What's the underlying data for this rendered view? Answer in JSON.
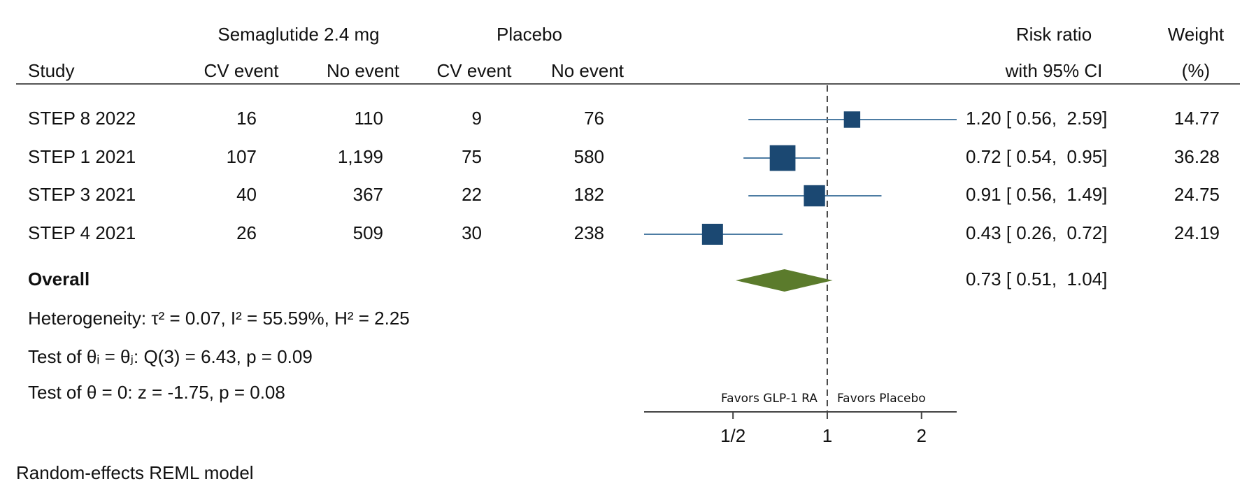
{
  "chart_data": {
    "type": "forest",
    "column_groups": [
      "Semaglutide 2.4 mg",
      "Placebo"
    ],
    "columns": [
      "Study",
      "CV event",
      "No event",
      "CV event",
      "No event"
    ],
    "estimate_header": [
      "Risk ratio",
      "with 95% CI"
    ],
    "weight_header": [
      "Weight",
      "(%)"
    ],
    "rows": [
      [
        "STEP 8 2022",
        "16",
        "110",
        "9",
        "76"
      ],
      [
        "STEP 1 2021",
        "107",
        "1,199",
        "75",
        "580"
      ],
      [
        "STEP 3 2021",
        "40",
        "367",
        "22",
        "182"
      ],
      [
        "STEP 4 2021",
        "26",
        "509",
        "30",
        "238"
      ]
    ],
    "values": [
      1.2,
      0.72,
      0.91,
      0.43
    ],
    "lower": [
      0.56,
      0.54,
      0.56,
      0.26
    ],
    "upper": [
      2.59,
      0.95,
      1.49,
      0.72
    ],
    "value_labels": [
      "1.20 [ 0.56,  2.59]",
      "0.72 [ 0.54,  0.95]",
      "0.91 [ 0.56,  1.49]",
      "0.43 [ 0.26,  0.72]"
    ],
    "weights": [
      14.77,
      36.28,
      24.75,
      24.19
    ],
    "overall": {
      "label": "Overall",
      "value": 0.73,
      "lower": 0.51,
      "upper": 1.04,
      "value_label": "0.73 [ 0.51,  1.04]"
    },
    "notes": [
      "Heterogeneity: τ² = 0.07, I² = 55.59%, H² = 2.25",
      "Test of θᵢ = θⱼ: Q(3) = 6.43, p = 0.09",
      "Test of θ = 0: z = -1.75, p = 0.08"
    ],
    "favors": [
      "Favors GLP-1 RA",
      "Favors Placebo"
    ],
    "xlim": [
      0.26,
      2.59
    ],
    "xticks": [
      {
        "value": 0.5,
        "label": "1/2"
      },
      1,
      2
    ],
    "log_x": true,
    "ref_line": 1,
    "footer": "Random-effects REML model",
    "colors": {
      "marker": "#1b4872",
      "ci": "#4d7ca3",
      "overall": "#5b7b2c"
    }
  }
}
